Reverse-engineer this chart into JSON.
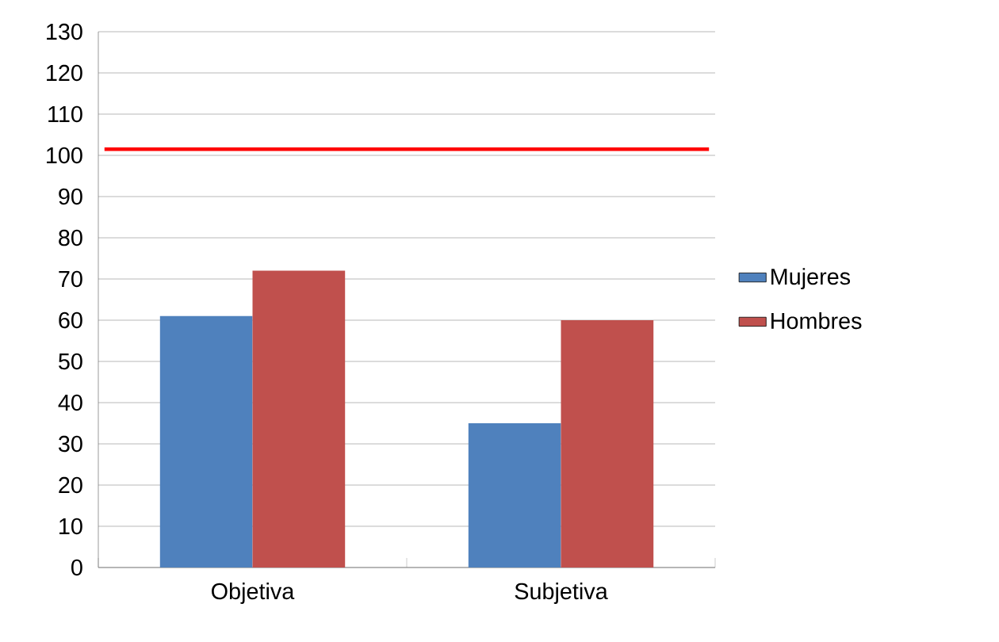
{
  "chart_data": {
    "type": "bar",
    "categories": [
      "Objetiva",
      "Subjetiva"
    ],
    "series": [
      {
        "name": "Mujeres",
        "color": "#4f81bd",
        "values": [
          61,
          35
        ]
      },
      {
        "name": "Hombres",
        "color": "#c0504d",
        "values": [
          72,
          60
        ]
      }
    ],
    "ylim": [
      0,
      130
    ],
    "yticks": [
      0,
      10,
      20,
      30,
      40,
      50,
      60,
      70,
      80,
      90,
      100,
      110,
      120,
      130
    ],
    "grid": "y",
    "legend": "right",
    "ref_lines": [
      {
        "axis": "y",
        "value": 101.5,
        "color": "#ff0000"
      }
    ]
  }
}
